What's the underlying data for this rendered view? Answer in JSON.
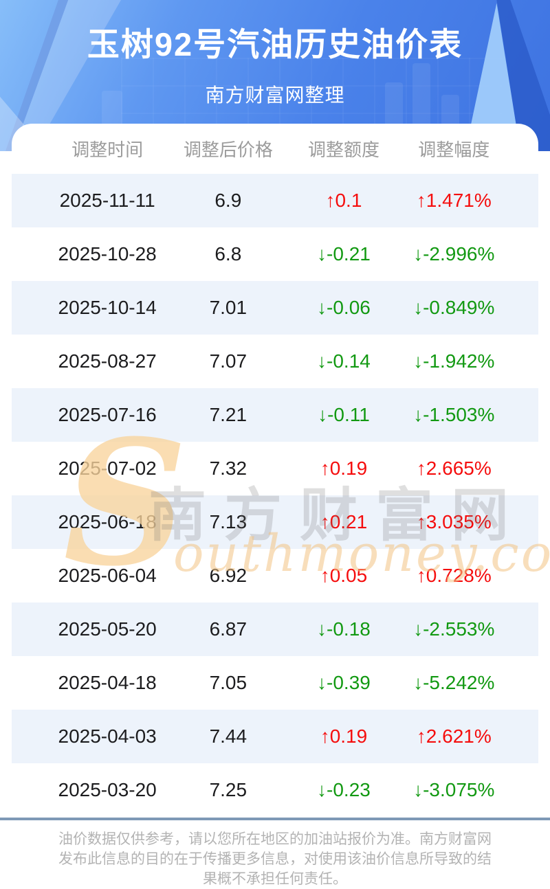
{
  "header": {
    "title": "玉树92号汽油历史油价表",
    "subtitle": "南方财富网整理"
  },
  "chart_data": {
    "type": "table",
    "title": "玉树92号汽油历史油价表",
    "columns": [
      "调整时间",
      "调整后价格",
      "调整额度",
      "调整幅度"
    ],
    "rows": [
      {
        "date": "2025-11-11",
        "price": "6.9",
        "change": "↑0.1",
        "percent": "↑1.471%",
        "direction": "up"
      },
      {
        "date": "2025-10-28",
        "price": "6.8",
        "change": "↓-0.21",
        "percent": "↓-2.996%",
        "direction": "down"
      },
      {
        "date": "2025-10-14",
        "price": "7.01",
        "change": "↓-0.06",
        "percent": "↓-0.849%",
        "direction": "down"
      },
      {
        "date": "2025-08-27",
        "price": "7.07",
        "change": "↓-0.14",
        "percent": "↓-1.942%",
        "direction": "down"
      },
      {
        "date": "2025-07-16",
        "price": "7.21",
        "change": "↓-0.11",
        "percent": "↓-1.503%",
        "direction": "down"
      },
      {
        "date": "2025-07-02",
        "price": "7.32",
        "change": "↑0.19",
        "percent": "↑2.665%",
        "direction": "up"
      },
      {
        "date": "2025-06-18",
        "price": "7.13",
        "change": "↑0.21",
        "percent": "↑3.035%",
        "direction": "up"
      },
      {
        "date": "2025-06-04",
        "price": "6.92",
        "change": "↑0.05",
        "percent": "↑0.728%",
        "direction": "up"
      },
      {
        "date": "2025-05-20",
        "price": "6.87",
        "change": "↓-0.18",
        "percent": "↓-2.553%",
        "direction": "down"
      },
      {
        "date": "2025-04-18",
        "price": "7.05",
        "change": "↓-0.39",
        "percent": "↓-5.242%",
        "direction": "down"
      },
      {
        "date": "2025-04-03",
        "price": "7.44",
        "change": "↑0.19",
        "percent": "↑2.621%",
        "direction": "up"
      },
      {
        "date": "2025-03-20",
        "price": "7.25",
        "change": "↓-0.23",
        "percent": "↓-3.075%",
        "direction": "down"
      }
    ]
  },
  "watermark": {
    "s": "S",
    "cn": "南方财富网",
    "en": "outhmoney.com"
  },
  "footer": {
    "lines": [
      "油价数据仅供参考，请以您所在地区的加油站报价为准。南方财富网",
      "发布此信息的目的在于传播更多信息，对使用该油价信息所导致的结",
      "果概不承担任何责任。"
    ]
  },
  "colors": {
    "up": "#f50d0d",
    "down": "#129912",
    "row_alt": "#edf3fb",
    "divider": "#7e99b6",
    "banner_from": "#87bef9",
    "banner_to": "#3e73e1"
  }
}
